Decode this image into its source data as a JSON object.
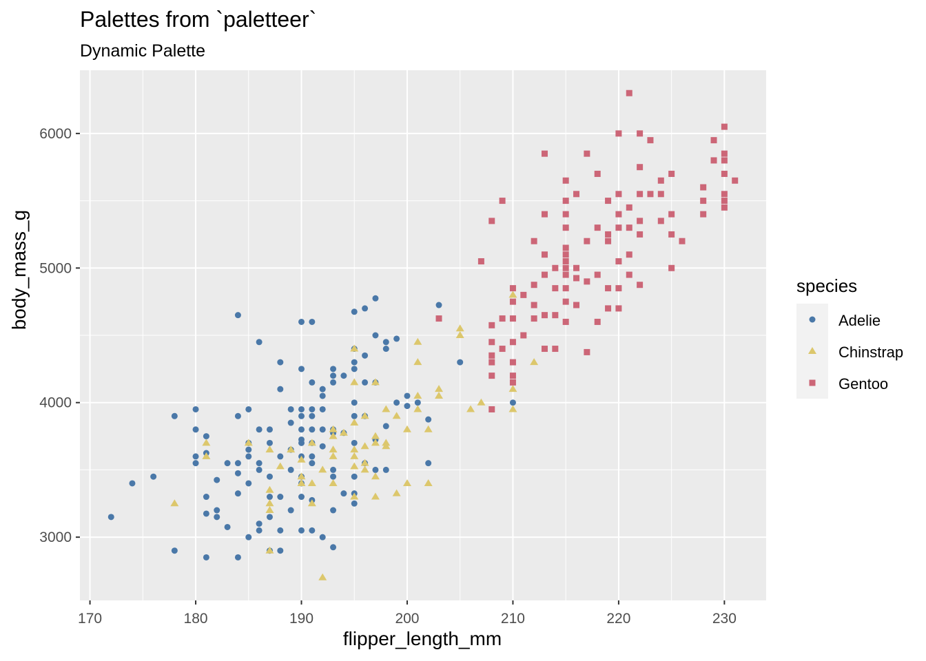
{
  "chart_data": {
    "type": "scatter",
    "title": "Palettes from `paletteer`",
    "subtitle": "Dynamic Palette",
    "xlabel": "flipper_length_mm",
    "ylabel": "body_mass_g",
    "xlim": [
      169.05,
      233.95
    ],
    "ylim": [
      2530,
      6470
    ],
    "xticks": [
      170,
      180,
      190,
      200,
      210,
      220,
      230
    ],
    "yticks": [
      3000,
      4000,
      5000,
      6000
    ],
    "grid": true,
    "legend_title": "species",
    "legend_position": "right",
    "series": [
      {
        "name": "Adelie",
        "color": "#4a78a8",
        "marker": "circle",
        "points": [
          [
            172,
            3150
          ],
          [
            174,
            3400
          ],
          [
            176,
            3450
          ],
          [
            178,
            3900
          ],
          [
            178,
            2900
          ],
          [
            180,
            3950
          ],
          [
            180,
            3600
          ],
          [
            180,
            3550
          ],
          [
            180,
            3800
          ],
          [
            181,
            3750
          ],
          [
            181,
            3625
          ],
          [
            181,
            3300
          ],
          [
            181,
            3175
          ],
          [
            181,
            2850
          ],
          [
            182,
            3425
          ],
          [
            182,
            3200
          ],
          [
            182,
            3150
          ],
          [
            183,
            3550
          ],
          [
            183,
            3075
          ],
          [
            184,
            4650
          ],
          [
            184,
            3900
          ],
          [
            184,
            3550
          ],
          [
            184,
            3475
          ],
          [
            184,
            3325
          ],
          [
            184,
            2850
          ],
          [
            185,
            3950
          ],
          [
            185,
            3700
          ],
          [
            185,
            3650
          ],
          [
            185,
            3600
          ],
          [
            185,
            3400
          ],
          [
            185,
            3000
          ],
          [
            186,
            4450
          ],
          [
            186,
            3800
          ],
          [
            186,
            3550
          ],
          [
            186,
            3500
          ],
          [
            186,
            3100
          ],
          [
            186,
            3050
          ],
          [
            187,
            3800
          ],
          [
            187,
            3700
          ],
          [
            187,
            3450
          ],
          [
            187,
            3300
          ],
          [
            187,
            3150
          ],
          [
            187,
            2900
          ],
          [
            188,
            4300
          ],
          [
            188,
            4100
          ],
          [
            188,
            3600
          ],
          [
            188,
            3300
          ],
          [
            188,
            3050
          ],
          [
            188,
            2900
          ],
          [
            189,
            3950
          ],
          [
            189,
            3850
          ],
          [
            189,
            3650
          ],
          [
            189,
            3500
          ],
          [
            189,
            3200
          ],
          [
            190,
            4600
          ],
          [
            190,
            4250
          ],
          [
            190,
            3950
          ],
          [
            190,
            3900
          ],
          [
            190,
            3800
          ],
          [
            190,
            3725
          ],
          [
            190,
            3700
          ],
          [
            190,
            3600
          ],
          [
            190,
            3450
          ],
          [
            190,
            3400
          ],
          [
            190,
            3300
          ],
          [
            190,
            3050
          ],
          [
            191,
            4600
          ],
          [
            191,
            4150
          ],
          [
            191,
            3950
          ],
          [
            191,
            3900
          ],
          [
            191,
            3800
          ],
          [
            191,
            3700
          ],
          [
            191,
            3600
          ],
          [
            191,
            3550
          ],
          [
            191,
            3275
          ],
          [
            191,
            3050
          ],
          [
            192,
            4100
          ],
          [
            192,
            4050
          ],
          [
            192,
            3950
          ],
          [
            192,
            3800
          ],
          [
            192,
            3675
          ],
          [
            192,
            3000
          ],
          [
            193,
            4250
          ],
          [
            193,
            4200
          ],
          [
            193,
            4150
          ],
          [
            193,
            3800
          ],
          [
            193,
            3775
          ],
          [
            193,
            3500
          ],
          [
            193,
            3450
          ],
          [
            193,
            3200
          ],
          [
            193,
            2925
          ],
          [
            194,
            4200
          ],
          [
            194,
            3775
          ],
          [
            194,
            3325
          ],
          [
            195,
            4675
          ],
          [
            195,
            4400
          ],
          [
            195,
            4300
          ],
          [
            195,
            4250
          ],
          [
            195,
            4000
          ],
          [
            195,
            3900
          ],
          [
            195,
            3700
          ],
          [
            195,
            3450
          ],
          [
            195,
            3325
          ],
          [
            195,
            3250
          ],
          [
            196,
            4700
          ],
          [
            196,
            4350
          ],
          [
            196,
            4150
          ],
          [
            196,
            3900
          ],
          [
            196,
            3550
          ],
          [
            197,
            4775
          ],
          [
            197,
            4500
          ],
          [
            197,
            4150
          ],
          [
            197,
            3725
          ],
          [
            197,
            3500
          ],
          [
            198,
            4400
          ],
          [
            198,
            4450
          ],
          [
            198,
            3825
          ],
          [
            198,
            3500
          ],
          [
            199,
            4475
          ],
          [
            199,
            4000
          ],
          [
            200,
            4050
          ],
          [
            200,
            3975
          ],
          [
            201,
            4000
          ],
          [
            202,
            3875
          ],
          [
            202,
            3550
          ],
          [
            203,
            4725
          ],
          [
            205,
            4300
          ],
          [
            210,
            4000
          ]
        ]
      },
      {
        "name": "Chinstrap",
        "color": "#dcc76c",
        "marker": "triangle",
        "points": [
          [
            178,
            3250
          ],
          [
            181,
            3700
          ],
          [
            181,
            3600
          ],
          [
            185,
            3700
          ],
          [
            187,
            3650
          ],
          [
            187,
            3350
          ],
          [
            187,
            3250
          ],
          [
            187,
            3200
          ],
          [
            187,
            2900
          ],
          [
            188,
            3525
          ],
          [
            189,
            3650
          ],
          [
            190,
            3575
          ],
          [
            190,
            3400
          ],
          [
            190,
            3450
          ],
          [
            191,
            3700
          ],
          [
            191,
            3400
          ],
          [
            191,
            3250
          ],
          [
            192,
            3500
          ],
          [
            192,
            2700
          ],
          [
            193,
            3800
          ],
          [
            193,
            3750
          ],
          [
            193,
            3650
          ],
          [
            193,
            3600
          ],
          [
            193,
            3400
          ],
          [
            194,
            3775
          ],
          [
            195,
            4400
          ],
          [
            195,
            4150
          ],
          [
            195,
            3850
          ],
          [
            195,
            3650
          ],
          [
            195,
            3600
          ],
          [
            195,
            3525
          ],
          [
            195,
            3300
          ],
          [
            196,
            3900
          ],
          [
            196,
            3675
          ],
          [
            196,
            3500
          ],
          [
            196,
            3550
          ],
          [
            197,
            4150
          ],
          [
            197,
            3750
          ],
          [
            197,
            3700
          ],
          [
            197,
            3450
          ],
          [
            197,
            3300
          ],
          [
            198,
            3950
          ],
          [
            198,
            3700
          ],
          [
            198,
            3675
          ],
          [
            199,
            3900
          ],
          [
            199,
            3325
          ],
          [
            200,
            3800
          ],
          [
            200,
            3400
          ],
          [
            201,
            4450
          ],
          [
            201,
            4300
          ],
          [
            201,
            4050
          ],
          [
            201,
            3950
          ],
          [
            202,
            3800
          ],
          [
            202,
            3400
          ],
          [
            203,
            4100
          ],
          [
            203,
            4050
          ],
          [
            205,
            4550
          ],
          [
            205,
            4500
          ],
          [
            206,
            3950
          ],
          [
            207,
            4000
          ],
          [
            210,
            4800
          ],
          [
            210,
            4100
          ],
          [
            210,
            3950
          ],
          [
            212,
            4300
          ]
        ]
      },
      {
        "name": "Gentoo",
        "color": "#cc6677",
        "marker": "square",
        "points": [
          [
            203,
            4625
          ],
          [
            207,
            5050
          ],
          [
            208,
            5350
          ],
          [
            208,
            4575
          ],
          [
            208,
            4450
          ],
          [
            208,
            4350
          ],
          [
            208,
            4300
          ],
          [
            208,
            4200
          ],
          [
            208,
            3950
          ],
          [
            209,
            5500
          ],
          [
            209,
            4625
          ],
          [
            209,
            4400
          ],
          [
            210,
            4850
          ],
          [
            210,
            4750
          ],
          [
            210,
            4625
          ],
          [
            210,
            4450
          ],
          [
            210,
            4300
          ],
          [
            210,
            4200
          ],
          [
            210,
            4150
          ],
          [
            211,
            4800
          ],
          [
            211,
            4500
          ],
          [
            212,
            5200
          ],
          [
            212,
            4875
          ],
          [
            212,
            4725
          ],
          [
            212,
            4625
          ],
          [
            213,
            5850
          ],
          [
            213,
            5400
          ],
          [
            213,
            5100
          ],
          [
            213,
            4950
          ],
          [
            213,
            4650
          ],
          [
            213,
            4400
          ],
          [
            214,
            5000
          ],
          [
            214,
            4850
          ],
          [
            214,
            4650
          ],
          [
            214,
            4400
          ],
          [
            215,
            5650
          ],
          [
            215,
            5500
          ],
          [
            215,
            5400
          ],
          [
            215,
            5300
          ],
          [
            215,
            5150
          ],
          [
            215,
            5100
          ],
          [
            215,
            5050
          ],
          [
            215,
            5000
          ],
          [
            215,
            4950
          ],
          [
            215,
            4850
          ],
          [
            215,
            4750
          ],
          [
            215,
            4600
          ],
          [
            216,
            5550
          ],
          [
            216,
            5000
          ],
          [
            216,
            4925
          ],
          [
            216,
            4725
          ],
          [
            217,
            5850
          ],
          [
            217,
            5200
          ],
          [
            217,
            4900
          ],
          [
            217,
            4375
          ],
          [
            218,
            5700
          ],
          [
            218,
            5300
          ],
          [
            218,
            4950
          ],
          [
            218,
            4600
          ],
          [
            219,
            5500
          ],
          [
            219,
            5250
          ],
          [
            219,
            5200
          ],
          [
            219,
            4700
          ],
          [
            219,
            4850
          ],
          [
            220,
            6000
          ],
          [
            220,
            5550
          ],
          [
            220,
            5400
          ],
          [
            220,
            5300
          ],
          [
            220,
            5050
          ],
          [
            220,
            4850
          ],
          [
            220,
            4700
          ],
          [
            221,
            6300
          ],
          [
            221,
            5450
          ],
          [
            221,
            5300
          ],
          [
            221,
            5100
          ],
          [
            221,
            4950
          ],
          [
            222,
            6000
          ],
          [
            222,
            5750
          ],
          [
            222,
            5550
          ],
          [
            222,
            5350
          ],
          [
            222,
            5250
          ],
          [
            222,
            4875
          ],
          [
            223,
            5950
          ],
          [
            223,
            5550
          ],
          [
            224,
            5650
          ],
          [
            224,
            5550
          ],
          [
            224,
            5350
          ],
          [
            225,
            5700
          ],
          [
            225,
            5400
          ],
          [
            225,
            5250
          ],
          [
            225,
            5000
          ],
          [
            226,
            5200
          ],
          [
            228,
            5600
          ],
          [
            228,
            5500
          ],
          [
            228,
            5400
          ],
          [
            229,
            5950
          ],
          [
            229,
            5800
          ],
          [
            230,
            6050
          ],
          [
            230,
            5850
          ],
          [
            230,
            5800
          ],
          [
            230,
            5700
          ],
          [
            230,
            5550
          ],
          [
            230,
            5500
          ],
          [
            230,
            5450
          ],
          [
            231,
            5650
          ]
        ]
      }
    ]
  }
}
